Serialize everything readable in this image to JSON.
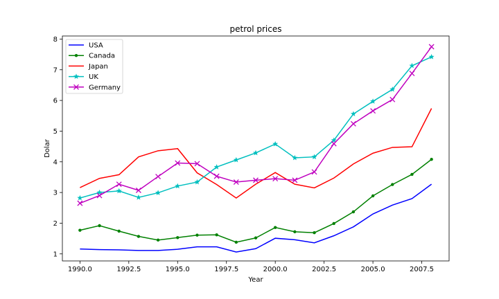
{
  "chart_data": {
    "type": "line",
    "title": "petrol prices",
    "xlabel": "Year",
    "ylabel": "Dolar",
    "xlim": [
      1989.1,
      2008.9
    ],
    "ylim": [
      0.77,
      8.1
    ],
    "xticks": [
      1990.0,
      1992.5,
      1995.0,
      1997.5,
      2000.0,
      2002.5,
      2005.0,
      2007.5
    ],
    "xtick_labels": [
      "1990.0",
      "1992.5",
      "1995.0",
      "1997.5",
      "2000.0",
      "2002.5",
      "2005.0",
      "2007.5"
    ],
    "yticks": [
      1,
      2,
      3,
      4,
      5,
      6,
      7,
      8
    ],
    "ytick_labels": [
      "1",
      "2",
      "3",
      "4",
      "5",
      "6",
      "7",
      "8"
    ],
    "grid": false,
    "legend_position": "upper-left",
    "x": [
      1990,
      1991,
      1992,
      1993,
      1994,
      1995,
      1996,
      1997,
      1998,
      1999,
      2000,
      2001,
      2002,
      2003,
      2004,
      2005,
      2006,
      2007,
      2008
    ],
    "series": [
      {
        "name": "USA",
        "color": "#0000ff",
        "marker": "none",
        "values": [
          1.16,
          1.14,
          1.13,
          1.11,
          1.11,
          1.15,
          1.23,
          1.23,
          1.06,
          1.17,
          1.51,
          1.46,
          1.36,
          1.59,
          1.88,
          2.3,
          2.59,
          2.8,
          3.27
        ]
      },
      {
        "name": "Canada",
        "color": "#008000",
        "marker": "dot",
        "values": [
          1.77,
          1.92,
          1.74,
          1.57,
          1.45,
          1.53,
          1.61,
          1.62,
          1.38,
          1.52,
          1.86,
          1.72,
          1.69,
          1.99,
          2.37,
          2.89,
          3.26,
          3.59,
          4.08
        ]
      },
      {
        "name": "Japan",
        "color": "#ff0000",
        "marker": "none",
        "values": [
          3.16,
          3.46,
          3.58,
          4.16,
          4.36,
          4.43,
          3.64,
          3.26,
          2.82,
          3.27,
          3.65,
          3.27,
          3.15,
          3.47,
          3.93,
          4.28,
          4.47,
          4.49,
          5.74
        ]
      },
      {
        "name": "UK",
        "color": "#00bfbf",
        "marker": "star",
        "values": [
          2.82,
          3.0,
          3.05,
          2.84,
          2.99,
          3.21,
          3.34,
          3.83,
          4.06,
          4.29,
          4.58,
          4.13,
          4.16,
          4.7,
          5.56,
          5.97,
          6.36,
          7.13,
          7.42
        ]
      },
      {
        "name": "Germany",
        "color": "#bf00bf",
        "marker": "x",
        "values": [
          2.65,
          2.9,
          3.27,
          3.07,
          3.52,
          3.96,
          3.94,
          3.53,
          3.34,
          3.4,
          3.45,
          3.4,
          3.67,
          4.59,
          5.24,
          5.66,
          6.03,
          6.88,
          7.75
        ]
      }
    ]
  }
}
